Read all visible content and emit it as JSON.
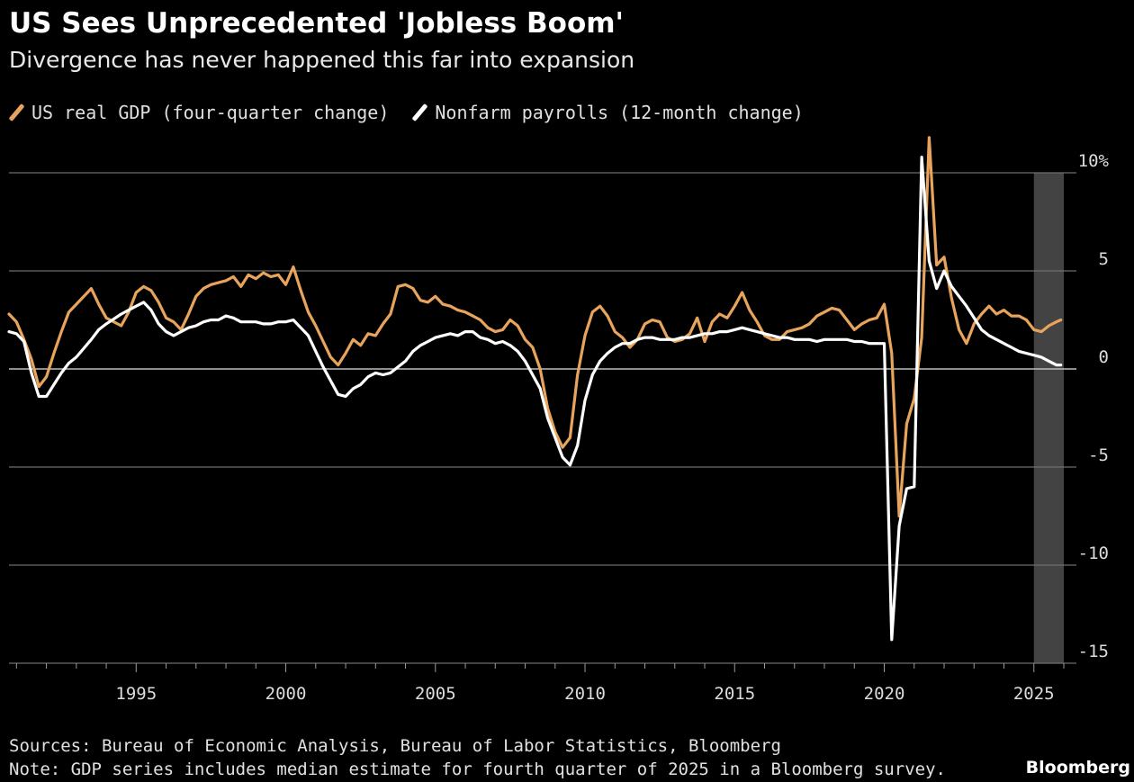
{
  "chart_data": {
    "type": "line",
    "title": "US Sees Unprecedented 'Jobless Boom'",
    "subtitle": "Divergence has never happened this far into expansion",
    "xlabel": "",
    "ylabel": "",
    "x_range": [
      1990.75,
      2026.0
    ],
    "ylim": [
      -15,
      10
    ],
    "y_ticks": [
      10,
      5,
      0,
      -5,
      -10,
      -15
    ],
    "y_tick_labels": [
      "10%",
      "5",
      "0",
      "-5",
      "-10",
      "-15"
    ],
    "x_ticks": [
      1995,
      2000,
      2005,
      2010,
      2015,
      2020,
      2025
    ],
    "x_tick_labels": [
      "1995",
      "2000",
      "2005",
      "2010",
      "2015",
      "2020",
      "2025"
    ],
    "grid": true,
    "legend_position": "top-left",
    "shaded_region": {
      "x_start": 2025.0,
      "x_end": 2026.0,
      "color": "#5a5a5a"
    },
    "series": [
      {
        "name": "US real GDP (four-quarter change)",
        "color": "#e8a45c",
        "points": [
          [
            1990.75,
            2.8
          ],
          [
            1991.0,
            2.4
          ],
          [
            1991.25,
            1.5
          ],
          [
            1991.5,
            0.5
          ],
          [
            1991.75,
            -0.9
          ],
          [
            1992.0,
            -0.4
          ],
          [
            1992.25,
            0.8
          ],
          [
            1992.5,
            1.9
          ],
          [
            1992.75,
            2.9
          ],
          [
            1993.0,
            3.3
          ],
          [
            1993.5,
            4.1
          ],
          [
            1993.75,
            3.3
          ],
          [
            1994.0,
            2.6
          ],
          [
            1994.5,
            2.2
          ],
          [
            1994.75,
            2.9
          ],
          [
            1995.0,
            3.9
          ],
          [
            1995.25,
            4.2
          ],
          [
            1995.5,
            4.0
          ],
          [
            1995.75,
            3.4
          ],
          [
            1996.0,
            2.6
          ],
          [
            1996.25,
            2.4
          ],
          [
            1996.5,
            2.0
          ],
          [
            1996.75,
            2.8
          ],
          [
            1997.0,
            3.7
          ],
          [
            1997.25,
            4.1
          ],
          [
            1997.5,
            4.3
          ],
          [
            1997.75,
            4.4
          ],
          [
            1998.0,
            4.5
          ],
          [
            1998.25,
            4.7
          ],
          [
            1998.5,
            4.2
          ],
          [
            1998.75,
            4.8
          ],
          [
            1999.0,
            4.6
          ],
          [
            1999.25,
            4.9
          ],
          [
            1999.5,
            4.7
          ],
          [
            1999.75,
            4.8
          ],
          [
            2000.0,
            4.3
          ],
          [
            2000.25,
            5.2
          ],
          [
            2000.5,
            4.0
          ],
          [
            2000.75,
            2.9
          ],
          [
            2001.0,
            2.2
          ],
          [
            2001.25,
            1.4
          ],
          [
            2001.5,
            0.6
          ],
          [
            2001.75,
            0.2
          ],
          [
            2002.0,
            0.8
          ],
          [
            2002.25,
            1.5
          ],
          [
            2002.5,
            1.2
          ],
          [
            2002.75,
            1.8
          ],
          [
            2003.0,
            1.7
          ],
          [
            2003.25,
            2.3
          ],
          [
            2003.5,
            2.8
          ],
          [
            2003.75,
            4.2
          ],
          [
            2004.0,
            4.3
          ],
          [
            2004.25,
            4.1
          ],
          [
            2004.5,
            3.5
          ],
          [
            2004.75,
            3.4
          ],
          [
            2005.0,
            3.7
          ],
          [
            2005.25,
            3.3
          ],
          [
            2005.5,
            3.2
          ],
          [
            2005.75,
            3.0
          ],
          [
            2006.0,
            2.9
          ],
          [
            2006.25,
            2.7
          ],
          [
            2006.5,
            2.5
          ],
          [
            2006.75,
            2.1
          ],
          [
            2007.0,
            1.9
          ],
          [
            2007.25,
            2.0
          ],
          [
            2007.5,
            2.5
          ],
          [
            2007.75,
            2.2
          ],
          [
            2008.0,
            1.5
          ],
          [
            2008.25,
            1.1
          ],
          [
            2008.5,
            0.0
          ],
          [
            2008.75,
            -2.0
          ],
          [
            2009.0,
            -3.2
          ],
          [
            2009.25,
            -4.0
          ],
          [
            2009.5,
            -3.5
          ],
          [
            2009.75,
            -0.3
          ],
          [
            2010.0,
            1.7
          ],
          [
            2010.25,
            2.9
          ],
          [
            2010.5,
            3.2
          ],
          [
            2010.75,
            2.7
          ],
          [
            2011.0,
            1.9
          ],
          [
            2011.25,
            1.6
          ],
          [
            2011.5,
            1.1
          ],
          [
            2011.75,
            1.5
          ],
          [
            2012.0,
            2.3
          ],
          [
            2012.25,
            2.5
          ],
          [
            2012.5,
            2.4
          ],
          [
            2012.75,
            1.6
          ],
          [
            2013.0,
            1.4
          ],
          [
            2013.25,
            1.5
          ],
          [
            2013.5,
            1.8
          ],
          [
            2013.75,
            2.6
          ],
          [
            2014.0,
            1.4
          ],
          [
            2014.25,
            2.4
          ],
          [
            2014.5,
            2.8
          ],
          [
            2014.75,
            2.6
          ],
          [
            2015.0,
            3.2
          ],
          [
            2015.25,
            3.9
          ],
          [
            2015.5,
            3.0
          ],
          [
            2015.75,
            2.4
          ],
          [
            2016.0,
            1.7
          ],
          [
            2016.25,
            1.5
          ],
          [
            2016.5,
            1.5
          ],
          [
            2016.75,
            1.9
          ],
          [
            2017.0,
            2.0
          ],
          [
            2017.25,
            2.1
          ],
          [
            2017.5,
            2.3
          ],
          [
            2017.75,
            2.7
          ],
          [
            2018.0,
            2.9
          ],
          [
            2018.25,
            3.1
          ],
          [
            2018.5,
            3.0
          ],
          [
            2018.75,
            2.5
          ],
          [
            2019.0,
            2.0
          ],
          [
            2019.25,
            2.3
          ],
          [
            2019.5,
            2.5
          ],
          [
            2019.75,
            2.6
          ],
          [
            2020.0,
            3.3
          ],
          [
            2020.25,
            0.8
          ],
          [
            2020.5,
            -7.5
          ],
          [
            2020.75,
            -2.8
          ],
          [
            2021.0,
            -1.5
          ],
          [
            2021.25,
            1.6
          ],
          [
            2021.5,
            11.8
          ],
          [
            2021.75,
            5.3
          ],
          [
            2022.0,
            5.7
          ],
          [
            2022.25,
            3.6
          ],
          [
            2022.5,
            2.0
          ],
          [
            2022.75,
            1.3
          ],
          [
            2023.0,
            2.3
          ],
          [
            2023.25,
            2.8
          ],
          [
            2023.5,
            3.2
          ],
          [
            2023.75,
            2.8
          ],
          [
            2024.0,
            3.0
          ],
          [
            2024.25,
            2.7
          ],
          [
            2024.5,
            2.7
          ],
          [
            2024.75,
            2.5
          ],
          [
            2025.0,
            2.0
          ],
          [
            2025.25,
            1.9
          ],
          [
            2025.5,
            2.2
          ],
          [
            2025.75,
            2.4
          ],
          [
            2025.9,
            2.5
          ]
        ]
      },
      {
        "name": "Nonfarm payrolls (12-month change)",
        "color": "#ffffff",
        "points": [
          [
            1990.75,
            1.9
          ],
          [
            1991.0,
            1.8
          ],
          [
            1991.25,
            1.4
          ],
          [
            1991.5,
            -0.2
          ],
          [
            1991.75,
            -1.4
          ],
          [
            1992.0,
            -1.4
          ],
          [
            1992.25,
            -0.8
          ],
          [
            1992.5,
            -0.2
          ],
          [
            1992.75,
            0.3
          ],
          [
            1993.0,
            0.6
          ],
          [
            1993.5,
            1.5
          ],
          [
            1993.75,
            2.0
          ],
          [
            1994.0,
            2.3
          ],
          [
            1994.5,
            2.8
          ],
          [
            1994.75,
            3.0
          ],
          [
            1995.0,
            3.2
          ],
          [
            1995.25,
            3.4
          ],
          [
            1995.5,
            3.0
          ],
          [
            1995.75,
            2.3
          ],
          [
            1996.0,
            1.9
          ],
          [
            1996.25,
            1.7
          ],
          [
            1996.5,
            1.9
          ],
          [
            1996.75,
            2.1
          ],
          [
            1997.0,
            2.2
          ],
          [
            1997.25,
            2.4
          ],
          [
            1997.5,
            2.5
          ],
          [
            1997.75,
            2.5
          ],
          [
            1998.0,
            2.7
          ],
          [
            1998.25,
            2.6
          ],
          [
            1998.5,
            2.4
          ],
          [
            1998.75,
            2.4
          ],
          [
            1999.0,
            2.4
          ],
          [
            1999.25,
            2.3
          ],
          [
            1999.5,
            2.3
          ],
          [
            1999.75,
            2.4
          ],
          [
            2000.0,
            2.4
          ],
          [
            2000.25,
            2.5
          ],
          [
            2000.5,
            2.1
          ],
          [
            2000.75,
            1.7
          ],
          [
            2001.0,
            0.9
          ],
          [
            2001.25,
            0.1
          ],
          [
            2001.5,
            -0.6
          ],
          [
            2001.75,
            -1.3
          ],
          [
            2002.0,
            -1.4
          ],
          [
            2002.25,
            -1.0
          ],
          [
            2002.5,
            -0.8
          ],
          [
            2002.75,
            -0.4
          ],
          [
            2003.0,
            -0.2
          ],
          [
            2003.25,
            -0.3
          ],
          [
            2003.5,
            -0.2
          ],
          [
            2003.75,
            0.1
          ],
          [
            2004.0,
            0.4
          ],
          [
            2004.25,
            0.9
          ],
          [
            2004.5,
            1.2
          ],
          [
            2004.75,
            1.4
          ],
          [
            2005.0,
            1.6
          ],
          [
            2005.25,
            1.7
          ],
          [
            2005.5,
            1.8
          ],
          [
            2005.75,
            1.7
          ],
          [
            2006.0,
            1.9
          ],
          [
            2006.25,
            1.9
          ],
          [
            2006.5,
            1.6
          ],
          [
            2006.75,
            1.5
          ],
          [
            2007.0,
            1.3
          ],
          [
            2007.25,
            1.4
          ],
          [
            2007.5,
            1.2
          ],
          [
            2007.75,
            0.9
          ],
          [
            2008.0,
            0.4
          ],
          [
            2008.25,
            -0.3
          ],
          [
            2008.5,
            -1.0
          ],
          [
            2008.75,
            -2.5
          ],
          [
            2009.0,
            -3.5
          ],
          [
            2009.25,
            -4.5
          ],
          [
            2009.5,
            -4.9
          ],
          [
            2009.75,
            -3.9
          ],
          [
            2010.0,
            -1.6
          ],
          [
            2010.25,
            -0.3
          ],
          [
            2010.5,
            0.4
          ],
          [
            2010.75,
            0.8
          ],
          [
            2011.0,
            1.1
          ],
          [
            2011.25,
            1.3
          ],
          [
            2011.5,
            1.3
          ],
          [
            2011.75,
            1.5
          ],
          [
            2012.0,
            1.6
          ],
          [
            2012.25,
            1.6
          ],
          [
            2012.5,
            1.5
          ],
          [
            2012.75,
            1.5
          ],
          [
            2013.0,
            1.5
          ],
          [
            2013.25,
            1.6
          ],
          [
            2013.5,
            1.6
          ],
          [
            2013.75,
            1.7
          ],
          [
            2014.0,
            1.8
          ],
          [
            2014.25,
            1.8
          ],
          [
            2014.5,
            1.9
          ],
          [
            2014.75,
            1.9
          ],
          [
            2015.0,
            2.0
          ],
          [
            2015.25,
            2.1
          ],
          [
            2015.5,
            2.0
          ],
          [
            2015.75,
            1.9
          ],
          [
            2016.0,
            1.8
          ],
          [
            2016.25,
            1.7
          ],
          [
            2016.5,
            1.6
          ],
          [
            2016.75,
            1.6
          ],
          [
            2017.0,
            1.5
          ],
          [
            2017.25,
            1.5
          ],
          [
            2017.5,
            1.5
          ],
          [
            2017.75,
            1.4
          ],
          [
            2018.0,
            1.5
          ],
          [
            2018.25,
            1.5
          ],
          [
            2018.5,
            1.5
          ],
          [
            2018.75,
            1.5
          ],
          [
            2019.0,
            1.4
          ],
          [
            2019.25,
            1.4
          ],
          [
            2019.5,
            1.3
          ],
          [
            2019.75,
            1.3
          ],
          [
            2020.0,
            1.3
          ],
          [
            2020.25,
            -13.8
          ],
          [
            2020.5,
            -8.0
          ],
          [
            2020.75,
            -6.1
          ],
          [
            2021.0,
            -6.0
          ],
          [
            2021.25,
            10.8
          ],
          [
            2021.5,
            5.5
          ],
          [
            2021.75,
            4.1
          ],
          [
            2022.0,
            5.0
          ],
          [
            2022.25,
            4.2
          ],
          [
            2022.5,
            3.7
          ],
          [
            2022.75,
            3.2
          ],
          [
            2023.0,
            2.6
          ],
          [
            2023.25,
            2.0
          ],
          [
            2023.5,
            1.7
          ],
          [
            2023.75,
            1.5
          ],
          [
            2024.0,
            1.3
          ],
          [
            2024.25,
            1.1
          ],
          [
            2024.5,
            0.9
          ],
          [
            2024.75,
            0.8
          ],
          [
            2025.0,
            0.7
          ],
          [
            2025.25,
            0.6
          ],
          [
            2025.5,
            0.4
          ],
          [
            2025.75,
            0.2
          ],
          [
            2025.9,
            0.2
          ]
        ]
      }
    ]
  },
  "sources": "Sources: Bureau of Economic Analysis, Bureau of Labor Statistics, Bloomberg",
  "note": "Note: GDP series includes median estimate for fourth quarter of 2025 in a Bloomberg survey.",
  "brand": "Bloomberg"
}
